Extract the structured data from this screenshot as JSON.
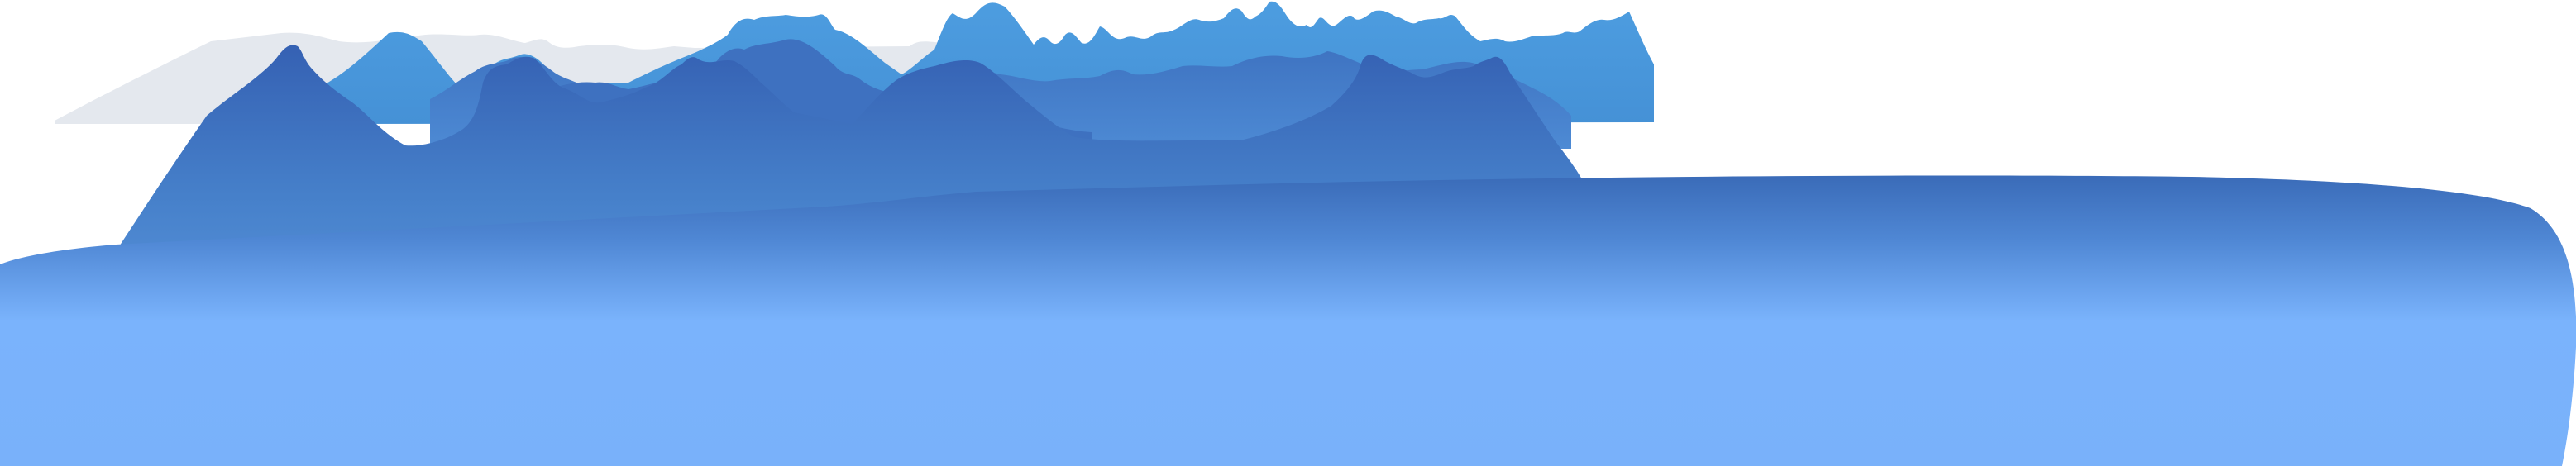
{
  "scene": {
    "kind": "landscape-illustration",
    "layers": [
      {
        "id": "far-haze-ridge",
        "color": "#e4e8ee"
      },
      {
        "id": "distant-range",
        "color": "#4a9ada"
      },
      {
        "id": "middle-range",
        "color": "#4780cc"
      },
      {
        "id": "foreground-mountain",
        "color": "#3a6bb8"
      },
      {
        "id": "water-plane",
        "color_top": "#3a6bb8",
        "color_bottom": "#7ab2fb"
      }
    ]
  }
}
